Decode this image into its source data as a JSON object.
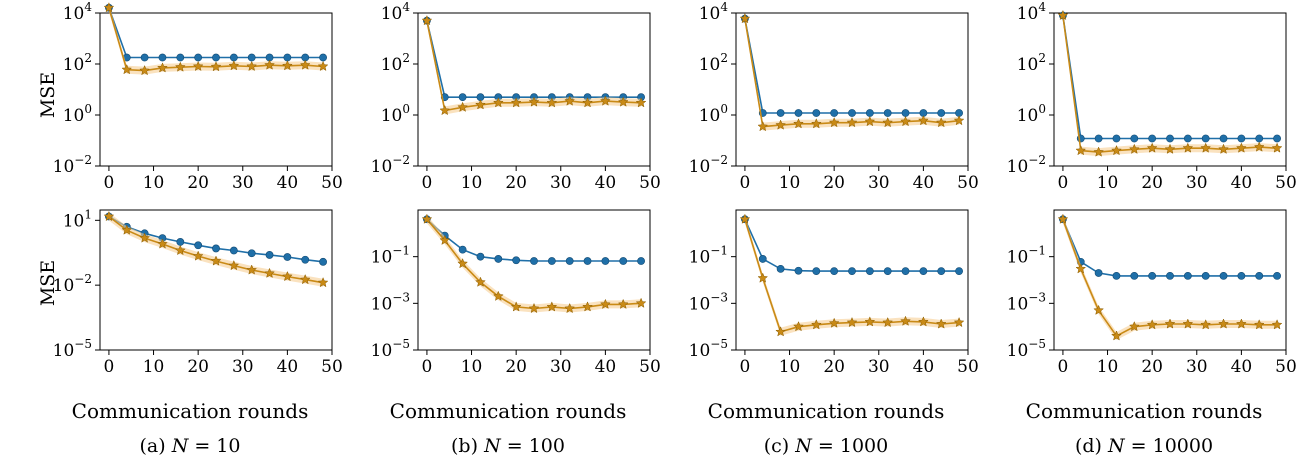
{
  "colors": {
    "blue": "#1f6fa8",
    "orange": "#c98a16",
    "band": "#f6cf94"
  },
  "series_names": [
    "",
    ""
  ],
  "x_ticks": [
    0,
    10,
    20,
    30,
    40,
    50
  ],
  "xlabel": "Communication rounds",
  "ylabel": "MSE",
  "captions": [
    {
      "prefix": "(a)",
      "var": "N",
      "value": "= 10"
    },
    {
      "prefix": "(b)",
      "var": "N",
      "value": "= 100"
    },
    {
      "prefix": "(c)",
      "var": "N",
      "value": "= 1000"
    },
    {
      "prefix": "(d)",
      "var": "N",
      "value": "= 10000"
    }
  ],
  "chart_data": [
    {
      "type": "line",
      "panel": "a-top",
      "yscale": "log",
      "ylim": [
        0.01,
        10000
      ],
      "xlim": [
        -2,
        50
      ],
      "yticks": [
        {
          "v": 10000,
          "b": "10",
          "e": "4"
        },
        {
          "v": 100,
          "b": "10",
          "e": "2"
        },
        {
          "v": 1,
          "b": "10",
          "e": "0"
        },
        {
          "v": 0.01,
          "b": "10",
          "e": "−2"
        }
      ],
      "series": [
        {
          "marker": "circle",
          "x": [
            0,
            4,
            8,
            12,
            16,
            20,
            24,
            28,
            32,
            36,
            40,
            44,
            48
          ],
          "y": [
            16000,
            180,
            180,
            180,
            180,
            180,
            180,
            180,
            180,
            180,
            180,
            180,
            180
          ]
        },
        {
          "marker": "star",
          "x": [
            0,
            4,
            8,
            12,
            16,
            20,
            24,
            28,
            32,
            36,
            40,
            44,
            48
          ],
          "y": [
            16000,
            60,
            55,
            70,
            75,
            80,
            78,
            85,
            80,
            90,
            85,
            90,
            80
          ]
        }
      ]
    },
    {
      "type": "line",
      "panel": "b-top",
      "yscale": "log",
      "ylim": [
        0.01,
        10000
      ],
      "xlim": [
        -2,
        50
      ],
      "yticks": [
        {
          "v": 10000,
          "b": "10",
          "e": "4"
        },
        {
          "v": 100,
          "b": "10",
          "e": "2"
        },
        {
          "v": 1,
          "b": "10",
          "e": "0"
        },
        {
          "v": 0.01,
          "b": "10",
          "e": "−2"
        }
      ],
      "series": [
        {
          "marker": "circle",
          "x": [
            0,
            4,
            8,
            12,
            16,
            20,
            24,
            28,
            32,
            36,
            40,
            44,
            48
          ],
          "y": [
            5000,
            5,
            5,
            5,
            5,
            5,
            5,
            5,
            5,
            5,
            5,
            5,
            5
          ]
        },
        {
          "marker": "star",
          "x": [
            0,
            4,
            8,
            12,
            16,
            20,
            24,
            28,
            32,
            36,
            40,
            44,
            48
          ],
          "y": [
            5000,
            1.5,
            2,
            2.5,
            3,
            3,
            3.2,
            3,
            3.5,
            3,
            3.5,
            3.2,
            3
          ]
        }
      ]
    },
    {
      "type": "line",
      "panel": "c-top",
      "yscale": "log",
      "ylim": [
        0.01,
        10000
      ],
      "xlim": [
        -2,
        50
      ],
      "yticks": [
        {
          "v": 10000,
          "b": "10",
          "e": "4"
        },
        {
          "v": 100,
          "b": "10",
          "e": "2"
        },
        {
          "v": 1,
          "b": "10",
          "e": "0"
        },
        {
          "v": 0.01,
          "b": "10",
          "e": "−2"
        }
      ],
      "series": [
        {
          "marker": "circle",
          "x": [
            0,
            4,
            8,
            12,
            16,
            20,
            24,
            28,
            32,
            36,
            40,
            44,
            48
          ],
          "y": [
            6000,
            1.2,
            1.2,
            1.2,
            1.2,
            1.2,
            1.2,
            1.2,
            1.2,
            1.2,
            1.2,
            1.2,
            1.2
          ]
        },
        {
          "marker": "star",
          "x": [
            0,
            4,
            8,
            12,
            16,
            20,
            24,
            28,
            32,
            36,
            40,
            44,
            48
          ],
          "y": [
            6000,
            0.35,
            0.4,
            0.45,
            0.45,
            0.5,
            0.5,
            0.55,
            0.5,
            0.55,
            0.6,
            0.5,
            0.6
          ]
        }
      ]
    },
    {
      "type": "line",
      "panel": "d-top",
      "yscale": "log",
      "ylim": [
        0.01,
        10000
      ],
      "xlim": [
        -2,
        50
      ],
      "yticks": [
        {
          "v": 10000,
          "b": "10",
          "e": "4"
        },
        {
          "v": 100,
          "b": "10",
          "e": "2"
        },
        {
          "v": 1,
          "b": "10",
          "e": "0"
        },
        {
          "v": 0.01,
          "b": "10",
          "e": "−2"
        }
      ],
      "series": [
        {
          "marker": "circle",
          "x": [
            0,
            4,
            8,
            12,
            16,
            20,
            24,
            28,
            32,
            36,
            40,
            44,
            48
          ],
          "y": [
            8000,
            0.12,
            0.12,
            0.12,
            0.12,
            0.12,
            0.12,
            0.12,
            0.12,
            0.12,
            0.12,
            0.12,
            0.12
          ]
        },
        {
          "marker": "star",
          "x": [
            0,
            4,
            8,
            12,
            16,
            20,
            24,
            28,
            32,
            36,
            40,
            44,
            48
          ],
          "y": [
            8000,
            0.04,
            0.035,
            0.04,
            0.045,
            0.05,
            0.045,
            0.05,
            0.05,
            0.045,
            0.05,
            0.055,
            0.05
          ]
        }
      ]
    },
    {
      "type": "line",
      "panel": "a-bottom",
      "yscale": "log",
      "ylim": [
        1e-05,
        30
      ],
      "xlim": [
        -2,
        50
      ],
      "yticks": [
        {
          "v": 10,
          "b": "10",
          "e": "1"
        },
        {
          "v": 0.01,
          "b": "10",
          "e": "−2"
        },
        {
          "v": 1e-05,
          "b": "10",
          "e": "−5"
        }
      ],
      "series": [
        {
          "marker": "circle",
          "x": [
            0,
            4,
            8,
            12,
            16,
            20,
            24,
            28,
            32,
            36,
            40,
            44,
            48
          ],
          "y": [
            15,
            5,
            2.5,
            1.5,
            1,
            0.7,
            0.5,
            0.4,
            0.3,
            0.25,
            0.2,
            0.15,
            0.12
          ]
        },
        {
          "marker": "star",
          "x": [
            0,
            4,
            8,
            12,
            16,
            20,
            24,
            28,
            32,
            36,
            40,
            44,
            48
          ],
          "y": [
            15,
            3.5,
            1.5,
            0.8,
            0.4,
            0.22,
            0.13,
            0.08,
            0.05,
            0.035,
            0.025,
            0.018,
            0.013
          ]
        }
      ]
    },
    {
      "type": "line",
      "panel": "b-bottom",
      "yscale": "log",
      "ylim": [
        1e-05,
        10
      ],
      "xlim": [
        -2,
        50
      ],
      "yticks": [
        {
          "v": 0.1,
          "b": "10",
          "e": "−1"
        },
        {
          "v": 0.001,
          "b": "10",
          "e": "−3"
        },
        {
          "v": 1e-05,
          "b": "10",
          "e": "−5"
        }
      ],
      "series": [
        {
          "marker": "circle",
          "x": [
            0,
            4,
            8,
            12,
            16,
            20,
            24,
            28,
            32,
            36,
            40,
            44,
            48
          ],
          "y": [
            4,
            0.8,
            0.2,
            0.1,
            0.08,
            0.07,
            0.065,
            0.065,
            0.065,
            0.065,
            0.065,
            0.065,
            0.065
          ]
        },
        {
          "marker": "star",
          "x": [
            0,
            4,
            8,
            12,
            16,
            20,
            24,
            28,
            32,
            36,
            40,
            44,
            48
          ],
          "y": [
            4,
            0.5,
            0.05,
            0.008,
            0.002,
            0.0007,
            0.0006,
            0.0007,
            0.0006,
            0.0007,
            0.0009,
            0.0009,
            0.001
          ]
        }
      ]
    },
    {
      "type": "line",
      "panel": "c-bottom",
      "yscale": "log",
      "ylim": [
        1e-05,
        10
      ],
      "xlim": [
        -2,
        50
      ],
      "yticks": [
        {
          "v": 0.1,
          "b": "10",
          "e": "−1"
        },
        {
          "v": 0.001,
          "b": "10",
          "e": "−3"
        },
        {
          "v": 1e-05,
          "b": "10",
          "e": "−5"
        }
      ],
      "series": [
        {
          "marker": "circle",
          "x": [
            0,
            4,
            8,
            12,
            16,
            20,
            24,
            28,
            32,
            36,
            40,
            44,
            48
          ],
          "y": [
            4,
            0.08,
            0.03,
            0.025,
            0.024,
            0.024,
            0.024,
            0.024,
            0.024,
            0.024,
            0.024,
            0.024,
            0.024
          ]
        },
        {
          "marker": "star",
          "x": [
            0,
            4,
            8,
            12,
            16,
            20,
            24,
            28,
            32,
            36,
            40,
            44,
            48
          ],
          "y": [
            4,
            0.012,
            6e-05,
            0.0001,
            0.00012,
            0.00014,
            0.00015,
            0.00016,
            0.00015,
            0.00017,
            0.00016,
            0.00013,
            0.00015
          ]
        }
      ]
    },
    {
      "type": "line",
      "panel": "d-bottom",
      "yscale": "log",
      "ylim": [
        1e-05,
        10
      ],
      "xlim": [
        -2,
        50
      ],
      "yticks": [
        {
          "v": 0.1,
          "b": "10",
          "e": "−1"
        },
        {
          "v": 0.001,
          "b": "10",
          "e": "−3"
        },
        {
          "v": 1e-05,
          "b": "10",
          "e": "−5"
        }
      ],
      "series": [
        {
          "marker": "circle",
          "x": [
            0,
            4,
            8,
            12,
            16,
            20,
            24,
            28,
            32,
            36,
            40,
            44,
            48
          ],
          "y": [
            4,
            0.06,
            0.02,
            0.015,
            0.015,
            0.015,
            0.015,
            0.015,
            0.015,
            0.015,
            0.015,
            0.015,
            0.015
          ]
        },
        {
          "marker": "star",
          "x": [
            0,
            4,
            8,
            12,
            16,
            20,
            24,
            28,
            32,
            36,
            40,
            44,
            48
          ],
          "y": [
            4,
            0.03,
            0.0005,
            4e-05,
            0.0001,
            0.00012,
            0.00013,
            0.00013,
            0.00012,
            0.00013,
            0.00013,
            0.00012,
            0.00012
          ]
        }
      ]
    }
  ]
}
